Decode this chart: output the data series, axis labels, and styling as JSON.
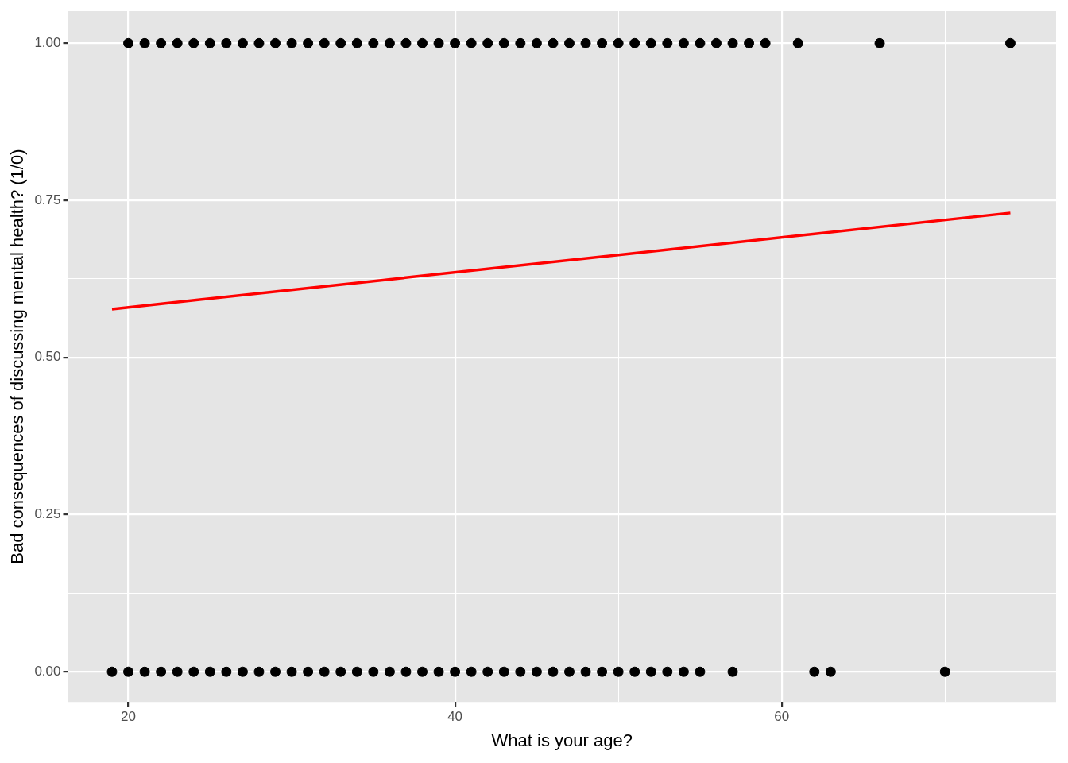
{
  "chart_data": {
    "type": "scatter",
    "xlabel": "What is your age?",
    "ylabel": "Bad consequences of discussing mental health? (1/0)",
    "xlim": [
      16.3,
      76.8
    ],
    "ylim": [
      -0.048,
      1.051
    ],
    "xticks": [
      20,
      {
        "value": 30,
        "label": null
      },
      40,
      {
        "value": 50,
        "label": null
      },
      60,
      {
        "value": 70,
        "label": null
      }
    ],
    "yticks": [
      "0.00",
      {
        "value": 0.125,
        "label": null
      },
      {
        "value": 0.25,
        "label": "0.25"
      },
      {
        "value": 0.375,
        "label": null
      },
      {
        "value": 0.5,
        "label": "0.50"
      },
      {
        "value": 0.625,
        "label": null
      },
      {
        "value": 0.75,
        "label": "0.75"
      },
      {
        "value": 0.875,
        "label": null
      },
      {
        "value": 1,
        "label": "1.00"
      }
    ],
    "grid": true,
    "legend": false,
    "marker": "circle",
    "series": [
      {
        "type": "scatter",
        "color": "#000000",
        "x": [
          20,
          21,
          22,
          23,
          24,
          25,
          26,
          27,
          28,
          29,
          30,
          31,
          32,
          33,
          34,
          35,
          36,
          37,
          38,
          39,
          40,
          41,
          42,
          43,
          44,
          45,
          46,
          47,
          48,
          49,
          50,
          51,
          52,
          53,
          54,
          55,
          56,
          57,
          58,
          59,
          61,
          66,
          74,
          19,
          20,
          21,
          22,
          23,
          24,
          25,
          26,
          27,
          28,
          29,
          30,
          31,
          32,
          33,
          34,
          35,
          36,
          37,
          38,
          39,
          40,
          41,
          42,
          43,
          44,
          45,
          46,
          47,
          48,
          49,
          50,
          51,
          52,
          53,
          54,
          55,
          57,
          62,
          63,
          70
        ],
        "values": [
          1,
          1,
          1,
          1,
          1,
          1,
          1,
          1,
          1,
          1,
          1,
          1,
          1,
          1,
          1,
          1,
          1,
          1,
          1,
          1,
          1,
          1,
          1,
          1,
          1,
          1,
          1,
          1,
          1,
          1,
          1,
          1,
          1,
          1,
          1,
          1,
          1,
          1,
          1,
          1,
          1,
          1,
          1,
          0,
          0,
          0,
          0,
          0,
          0,
          0,
          0,
          0,
          0,
          0,
          0,
          0,
          0,
          0,
          0,
          0,
          0,
          0,
          0,
          0,
          0,
          0,
          0,
          0,
          0,
          0,
          0,
          0,
          0,
          0,
          0,
          0,
          0,
          0,
          0,
          0,
          0,
          0,
          0,
          0
        ]
      },
      {
        "type": "line",
        "color": "#ff0000",
        "marker": "none",
        "line_style": "solid",
        "x": [
          19,
          74
        ],
        "values": [
          0.577,
          0.73
        ]
      }
    ]
  }
}
